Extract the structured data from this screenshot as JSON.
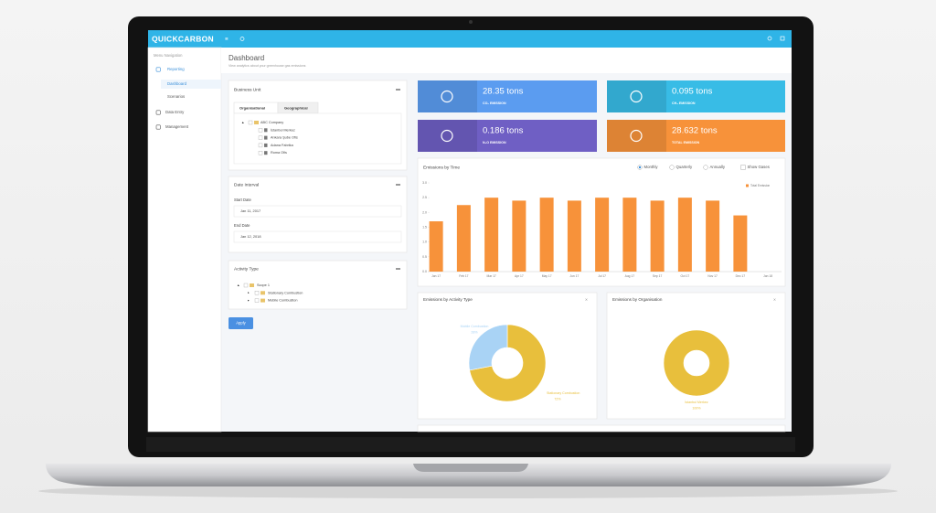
{
  "app": {
    "brand": "QUICKCARBON"
  },
  "sidebar": {
    "heading": "Menu Navigation",
    "items": [
      "Reporting",
      "Dashboard",
      "Scenarios",
      "Data Entry",
      "Management"
    ]
  },
  "header": {
    "title": "Dashboard",
    "subtitle": "View analytics about your greenhouse gas emissions"
  },
  "filters": {
    "business_unit": {
      "title": "Business Unit",
      "tabs": [
        "Organisational",
        "Geographical"
      ],
      "tree": [
        "ABC Company",
        "İstanbul Merkez",
        "Ankara Şube Ofis",
        "Adana Fabrika",
        "Roma Ofis"
      ]
    },
    "date_interval": {
      "title": "Date Interval",
      "start_label": "Start Date",
      "start": "Jan 11, 2017",
      "end_label": "End Date",
      "end": "Jan 12, 2018"
    },
    "activity_type": {
      "title": "Activity Type",
      "tree": [
        "Scope 1",
        "Stationary Combustion",
        "Mobile Combustion"
      ]
    },
    "apply": "Apply"
  },
  "cards": [
    {
      "value": "28.35 tons",
      "label": "CO₂ EMISSION",
      "color": "#5b9cf0"
    },
    {
      "value": "0.095 tons",
      "label": "CH₄ EMISSION",
      "color": "#38bce6"
    },
    {
      "value": "0.186 tons",
      "label": "N₂O EMISSION",
      "color": "#6f5fc4"
    },
    {
      "value": "28.632 tons",
      "label": "TOTAL EMISSION",
      "color": "#f7923a"
    }
  ],
  "chart_data": [
    {
      "type": "bar",
      "title": "Emissions by Time",
      "controls": [
        "Monthly",
        "Quarterly",
        "Annually",
        "Show Gases"
      ],
      "categories": [
        "Jan 17",
        "Feb 17",
        "Mar 17",
        "Apr 17",
        "May 17",
        "Jun 17",
        "Jul 17",
        "Aug 17",
        "Sep 17",
        "Oct 17",
        "Nov 17",
        "Dec 17",
        "Jan 18"
      ],
      "series": [
        {
          "name": "Total Emission",
          "color": "#f7923a",
          "values": [
            1.7,
            2.25,
            2.5,
            2.4,
            2.5,
            2.4,
            2.5,
            2.5,
            2.4,
            2.5,
            2.4,
            1.9,
            null
          ]
        }
      ],
      "ylim": [
        0,
        3
      ],
      "yticks": [
        {
          "value": 0,
          "label": "0.0"
        },
        {
          "value": 0.5,
          "label": "0.5"
        },
        {
          "value": 1,
          "label": "1.0"
        },
        {
          "value": 1.5,
          "label": "1.5"
        },
        {
          "value": 2,
          "label": "2.0"
        },
        {
          "value": 2.5,
          "label": "2.5"
        },
        {
          "value": 3,
          "label": "3.0"
        }
      ],
      "grid": false,
      "legend": "upper right"
    },
    {
      "type": "pie",
      "title": "Emissions by Activity Type",
      "categories": [
        "Stationary Combustion",
        "Mobile Combustion"
      ],
      "values": [
        72,
        28
      ],
      "value_labels": [
        "72%",
        "28%"
      ],
      "colors": [
        "#e8bf3c",
        "#a9d3f5"
      ]
    },
    {
      "type": "pie",
      "title": "Emissions by Organisation",
      "categories": [
        "İstanbul Merkez"
      ],
      "values": [
        100
      ],
      "value_labels": [
        "100%"
      ],
      "colors": [
        "#e8bf3c"
      ]
    }
  ]
}
